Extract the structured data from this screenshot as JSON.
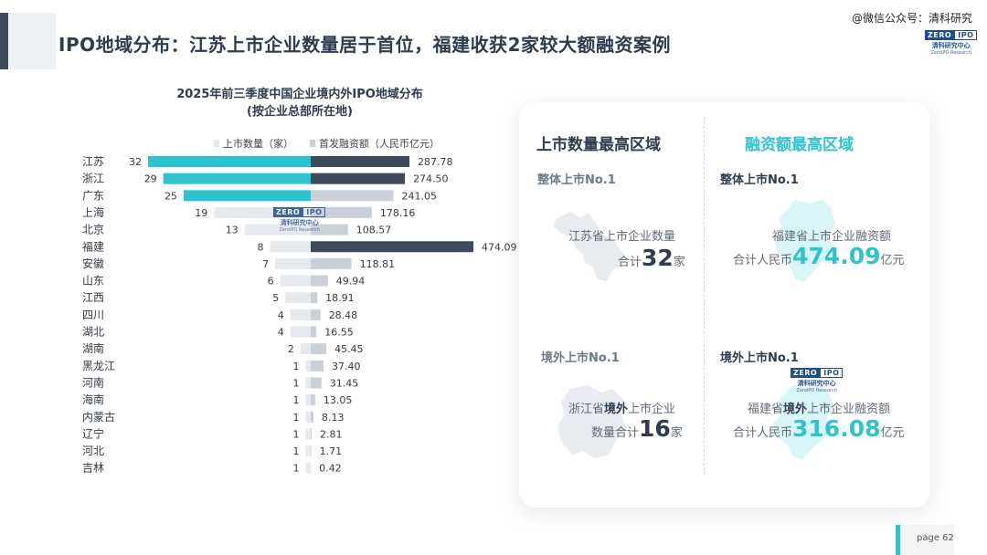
{
  "header": {
    "title": "IPO地域分布：江苏上市企业数量居于首位，福建收获2家较大额融资案例",
    "watermark": "@微信公众号：清科研究"
  },
  "logo": {
    "zero": "ZERO",
    "ipo": "IPO",
    "cn": "清科研究中心",
    "en": "ZeroIPO Research"
  },
  "chart_data": {
    "type": "bar",
    "title": "2025年前三季度中国企业境内外IPO地域分布",
    "subtitle": "(按企业总部所在地)",
    "legend_position": "top",
    "categories": [
      "江苏",
      "浙江",
      "广东",
      "上海",
      "北京",
      "福建",
      "安徽",
      "山东",
      "江西",
      "四川",
      "湖北",
      "湖南",
      "黑龙江",
      "河南",
      "海南",
      "内蒙古",
      "辽宁",
      "河北",
      "吉林"
    ],
    "series": [
      {
        "name": "上市数量（家）",
        "values": [
          32,
          29,
          25,
          19,
          13,
          8,
          7,
          6,
          5,
          4,
          4,
          2,
          1,
          1,
          1,
          1,
          1,
          1,
          1
        ]
      },
      {
        "name": "首发融资额（人民币亿元）",
        "values": [
          287.78,
          274.5,
          241.05,
          178.16,
          108.57,
          474.09,
          118.81,
          49.94,
          18.91,
          28.48,
          16.55,
          45.45,
          37.4,
          31.45,
          13.05,
          8.13,
          2.81,
          1.71,
          0.42
        ]
      }
    ],
    "value_labels_count": [
      "32",
      "29",
      "25",
      "19",
      "13",
      "8",
      "7",
      "6",
      "5",
      "4",
      "4",
      "2",
      "1",
      "1",
      "1",
      "1",
      "1",
      "1",
      "1"
    ],
    "value_labels_amount": [
      "287.78",
      "274.50",
      "241.05",
      "178.16",
      "108.57",
      "474.09",
      "118.81",
      "49.94",
      "18.91",
      "28.48",
      "16.55",
      "45.45",
      "37.40",
      "31.45",
      "13.05",
      "8.13",
      "2.81",
      "1.71",
      "0.42"
    ],
    "highlight_count_top": 3,
    "highlight_amount": [
      "江苏",
      "浙江",
      "福建"
    ]
  },
  "colors": {
    "teal": "#2ec4cf",
    "navy": "#3e4a5c",
    "light_count": "#e6e9ee",
    "light_amount": "#c9d0da"
  },
  "panel": {
    "left_heading": "上市数量最高区域",
    "right_heading": "融资额最高区域",
    "a": {
      "sub": "整体上市No.1",
      "line1": "江苏省上市企业数量",
      "pre": "合计",
      "num": "32",
      "post": "家"
    },
    "b": {
      "sub": "整体上市No.1",
      "line1": "福建省上市企业融资额",
      "pre": "合计人民币",
      "num": "474.09",
      "post": "亿元"
    },
    "c": {
      "sub": "境外上市No.1",
      "l1a": "浙江省",
      "l1b": "境外",
      "l1c": "上市企业",
      "pre": "数量合计",
      "num": "16",
      "post": "家"
    },
    "d": {
      "sub": "境外上市No.1",
      "l1a": "福建省",
      "l1b": "境外",
      "l1c": "上市企业融资额",
      "pre": "合计人民币",
      "num": "316.08",
      "post": "亿元"
    }
  },
  "footer": {
    "page": "page  62"
  }
}
